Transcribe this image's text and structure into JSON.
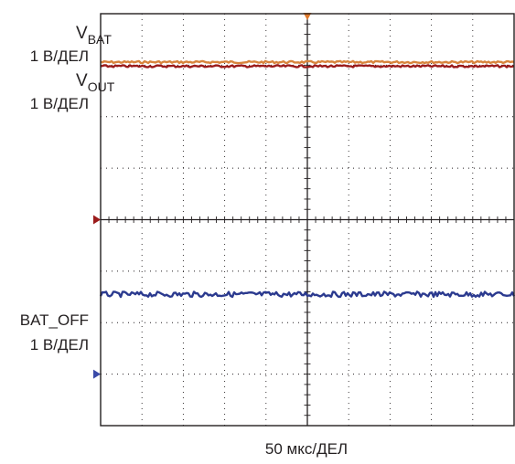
{
  "chart_data": {
    "type": "line",
    "grid": true,
    "divisions": {
      "x": 10,
      "y": 8
    },
    "xlabel": "50 мкс/ДЕЛ",
    "xlim": [
      0,
      10
    ],
    "ylim": [
      -4,
      4
    ],
    "series": [
      {
        "key": "vbat",
        "name": "V",
        "sub": "BAT",
        "scale": "1 В/ДЕЛ",
        "color": "#d8843c",
        "level": 3.06,
        "noise": 0.02
      },
      {
        "key": "vout",
        "name": "V",
        "sub": "OUT",
        "scale": "1 В/ДЕЛ",
        "color": "#9b1b1b",
        "level": 2.98,
        "noise": 0.02
      },
      {
        "key": "batoff",
        "name": "BAT_OFF",
        "sub": "",
        "scale": "1 В/ДЕЛ",
        "color": "#2b3a8f",
        "level": -1.45,
        "noise": 0.05
      }
    ],
    "markers": {
      "trigger_color": "#e07a2c",
      "ch1_ground_level": 0,
      "ch1_color": "#9b1b1b",
      "ch2_ground_level": -3.0,
      "ch2_color": "#3a4aa8"
    }
  }
}
